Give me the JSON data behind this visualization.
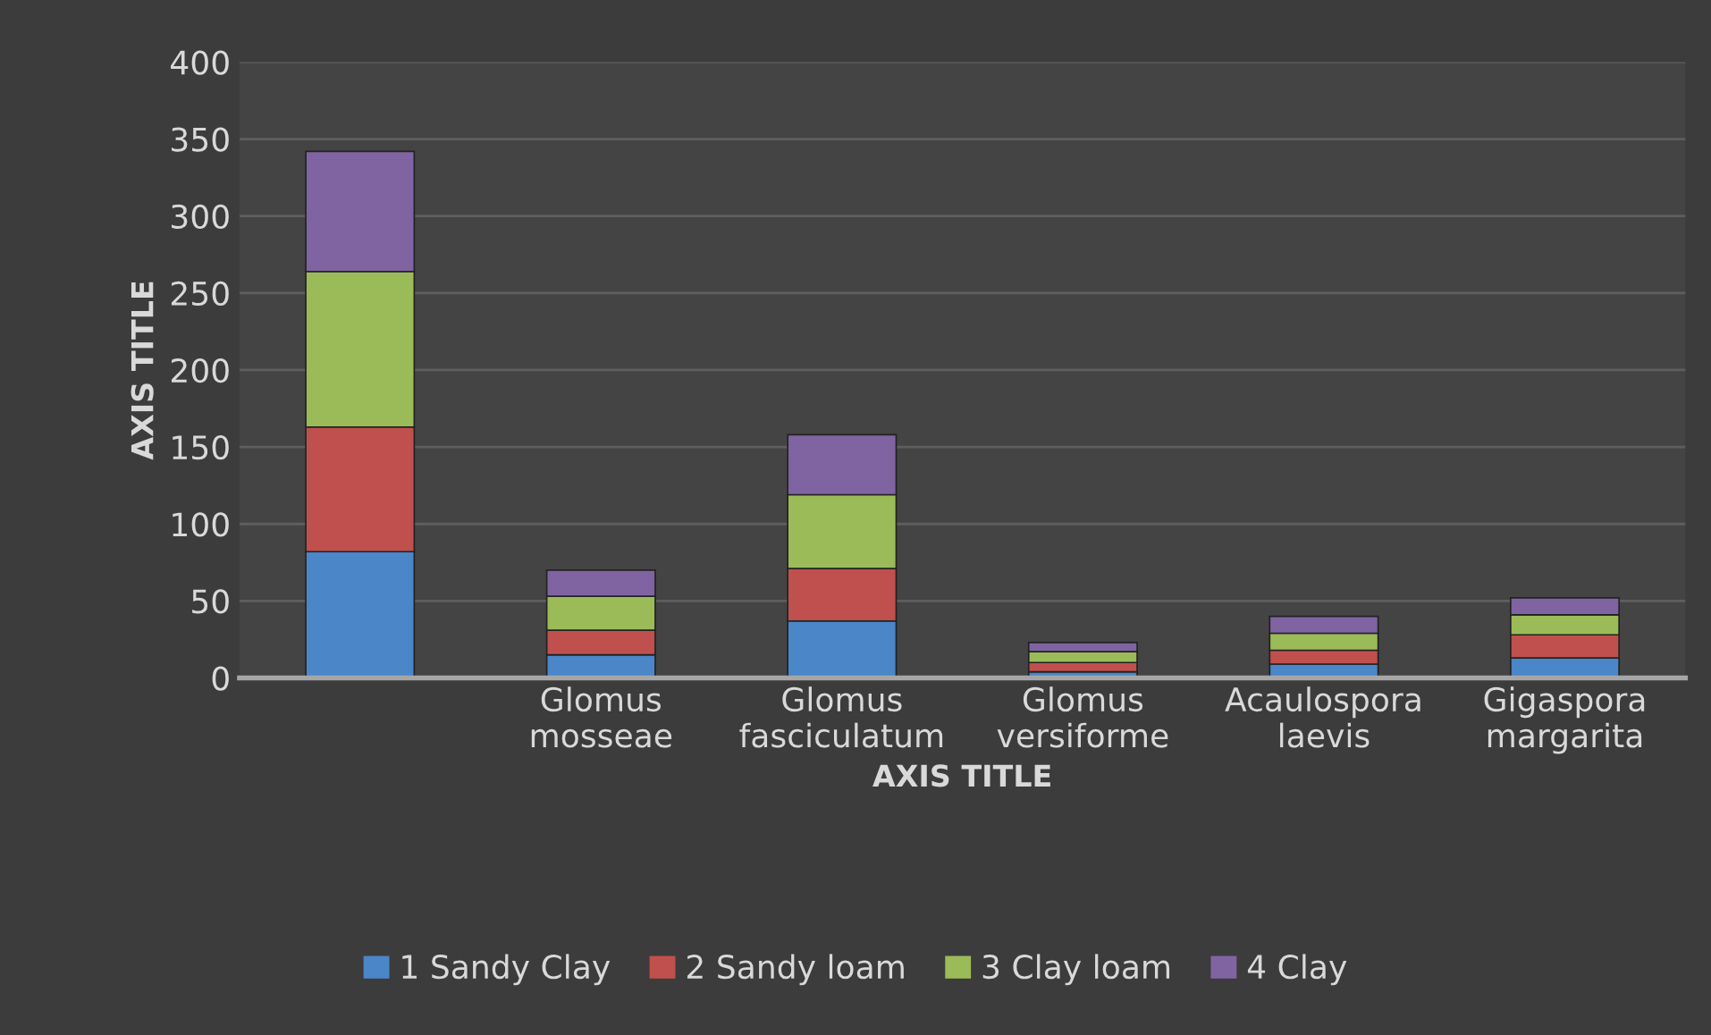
{
  "chart_data": {
    "type": "bar",
    "stacked": true,
    "xlabel": "AXIS TITLE",
    "ylabel": "AXIS TITLE",
    "categories": [
      null,
      "Glomus\nmosseae",
      "Glomus\nfasciculatum",
      "Glomus\nversiforme",
      "Acaulospora\nlaevis",
      "Gigaspora\nmargarita"
    ],
    "series": [
      {
        "name": "1 Sandy Clay",
        "color": "#4a86c8",
        "values": [
          82,
          15,
          37,
          4,
          9,
          13
        ]
      },
      {
        "name": "2 Sandy loam",
        "color": "#c0504d",
        "values": [
          81,
          16,
          34,
          6,
          9,
          15
        ]
      },
      {
        "name": "3 Clay loam",
        "color": "#9bbb59",
        "values": [
          101,
          22,
          48,
          7,
          11,
          13
        ]
      },
      {
        "name": "4 Clay",
        "color": "#8064a2",
        "values": [
          78,
          17,
          39,
          6,
          11,
          11
        ]
      }
    ],
    "ylim": [
      0,
      400
    ],
    "yticks": [
      0,
      50,
      100,
      150,
      200,
      250,
      300,
      350,
      400
    ],
    "grid": "y",
    "legend": "bottom"
  }
}
